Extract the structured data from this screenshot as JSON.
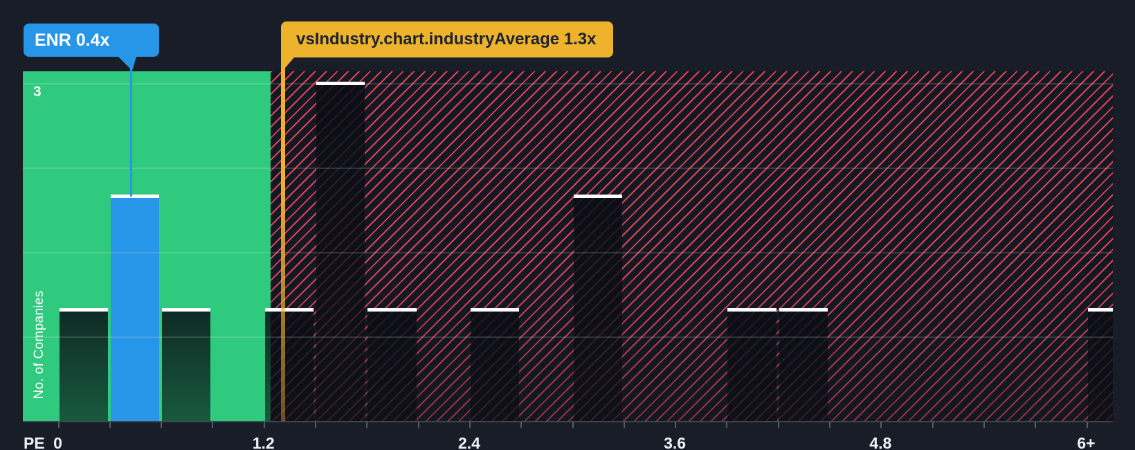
{
  "chart_data": {
    "type": "bar",
    "xlabel": "PE",
    "ylabel": "No. of Companies",
    "y_tick_label": "3",
    "x_tick_labels": [
      "0",
      "1.2",
      "2.4",
      "3.6",
      "4.8",
      "6+"
    ],
    "x_tick_pe_values": [
      0,
      1.2,
      2.4,
      3.6,
      4.8,
      6
    ],
    "bucket_size_pe": 0.3,
    "ylim": [
      0,
      3.1
    ],
    "gridline_values": [
      3,
      2.25,
      1.5,
      0.75
    ],
    "grid": "horizontal-only",
    "legend_position": "none",
    "bars": [
      {
        "pe_from": 0.0,
        "pe_to": 0.3,
        "companies": 1,
        "kind": "industry"
      },
      {
        "pe_from": 0.3,
        "pe_to": 0.6,
        "companies": 2,
        "kind": "company-highlight"
      },
      {
        "pe_from": 0.6,
        "pe_to": 0.9,
        "companies": 1,
        "kind": "industry"
      },
      {
        "pe_from": 1.2,
        "pe_to": 1.5,
        "companies": 1,
        "kind": "industry"
      },
      {
        "pe_from": 1.5,
        "pe_to": 1.8,
        "companies": 3,
        "kind": "industry"
      },
      {
        "pe_from": 1.8,
        "pe_to": 2.1,
        "companies": 1,
        "kind": "industry"
      },
      {
        "pe_from": 2.4,
        "pe_to": 2.7,
        "companies": 1,
        "kind": "industry"
      },
      {
        "pe_from": 3.0,
        "pe_to": 3.3,
        "companies": 2,
        "kind": "industry"
      },
      {
        "pe_from": 3.9,
        "pe_to": 4.2,
        "companies": 1,
        "kind": "industry"
      },
      {
        "pe_from": 4.2,
        "pe_to": 4.5,
        "companies": 1,
        "kind": "industry"
      },
      {
        "pe_from": 6.0,
        "pe_to": 6.3,
        "companies": 1,
        "kind": "industry"
      }
    ],
    "markers": [
      {
        "id": "company",
        "label": "ENR 0.4x",
        "pe_value": 0.4,
        "color": "#2795e8"
      },
      {
        "id": "industry-average",
        "label": "vsIndustry.chart.industryAverage 1.3x",
        "pe_value": 1.3,
        "color": "#eeb32c"
      }
    ],
    "zones": [
      {
        "id": "below-average",
        "fill": "#2fca7e",
        "style": "solid-green"
      },
      {
        "id": "above-average",
        "fill": "#f24450",
        "style": "red-diagonal-hatch"
      }
    ]
  },
  "tooltips": {
    "company": "ENR 0.4x",
    "industry_average": "vsIndustry.chart.industryAverage 1.3x"
  },
  "colors": {
    "background": "#181d27",
    "company_blue": "#2795e8",
    "industry_average_yellow": "#eeb32c",
    "below_average_green": "#2fca7e",
    "hatch_red": "#f24450",
    "bar_cap_white": "#ffffff",
    "axis_text": "#f0f3f6"
  }
}
